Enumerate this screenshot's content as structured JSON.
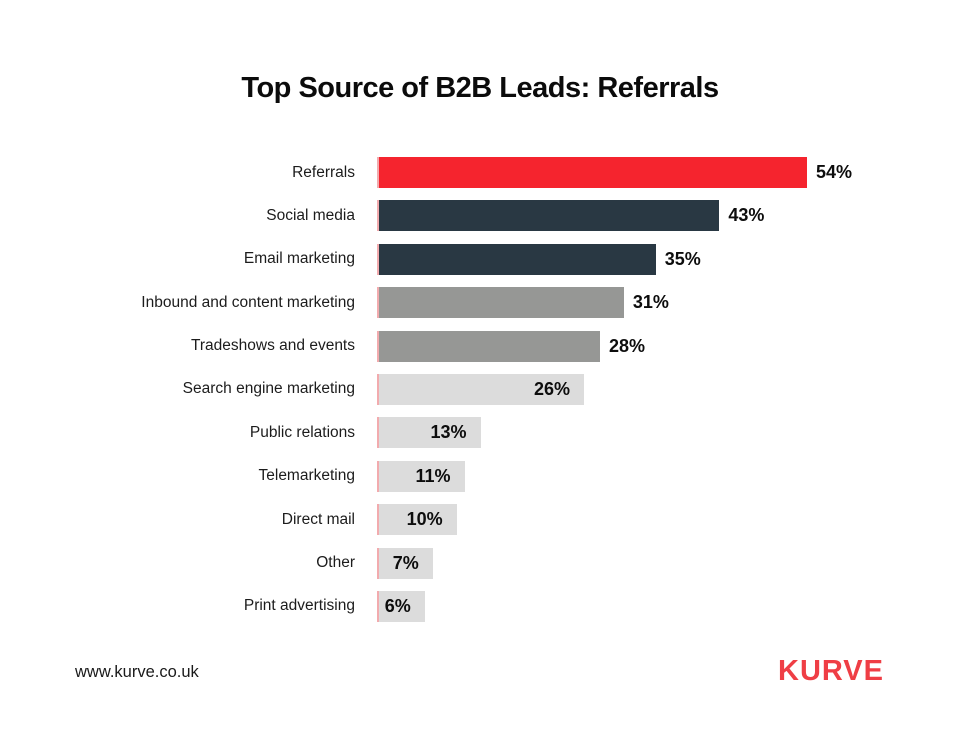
{
  "title": "Top Source of B2B Leads: Referrals",
  "footer": {
    "website": "www.kurve.co.uk",
    "logo_text": "KURVE"
  },
  "colors": {
    "referral_red": "#f5242e",
    "dark_navy": "#293843",
    "mid_gray": "#969795",
    "light_gray": "#dcdcdc",
    "bar_left_edge_pink": "#f2abae",
    "logo_red": "#ef3e45",
    "title_black": "#0b0b0b"
  },
  "chart_data": {
    "type": "bar",
    "orientation": "horizontal",
    "title": "Top Source of B2B Leads: Referrals",
    "value_suffix": "%",
    "xlim": [
      0,
      54
    ],
    "grid": false,
    "legend": false,
    "categories": [
      "Referrals",
      "Social media",
      "Email marketing",
      "Inbound and content marketing",
      "Tradeshows and events",
      "Search engine marketing",
      "Public relations",
      "Telemarketing",
      "Direct mail",
      "Other",
      "Print advertising"
    ],
    "values": [
      54,
      43,
      35,
      31,
      28,
      26,
      13,
      11,
      10,
      7,
      6
    ],
    "bar_colors": [
      "#f5242e",
      "#293843",
      "#293843",
      "#969795",
      "#969795",
      "#dcdcdc",
      "#dcdcdc",
      "#dcdcdc",
      "#dcdcdc",
      "#dcdcdc",
      "#dcdcdc"
    ],
    "value_label_positions": [
      "outside",
      "outside",
      "outside",
      "outside",
      "outside",
      "inside",
      "inside",
      "inside",
      "inside",
      "inside",
      "inside"
    ]
  }
}
